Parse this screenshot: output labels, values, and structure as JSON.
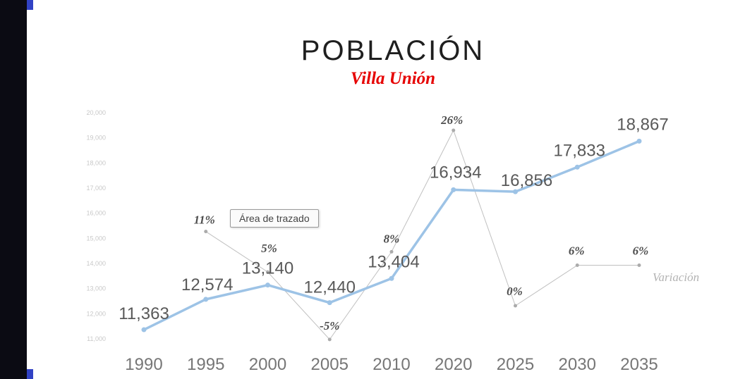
{
  "title": "POBLACIÓN",
  "subtitle": "Villa Unión",
  "tooltip": {
    "text": "Área de trazado"
  },
  "legend": {
    "variation_label": "Variación"
  },
  "colors": {
    "population_line": "#9dc3e6",
    "variation_line": "#c0c0c0",
    "variation_marker": "#ababab",
    "subtitle_red": "#e60000",
    "accent_blue": "#3142c4",
    "panel_black": "#0b0b13"
  },
  "chart_data": {
    "type": "line",
    "title": "POBLACIÓN",
    "subtitle": "Villa Unión",
    "categories": [
      "1990",
      "1995",
      "2000",
      "2005",
      "2010",
      "2020",
      "2025",
      "2030",
      "2035"
    ],
    "series": [
      {
        "name": "Población",
        "values": [
          11363,
          12574,
          13140,
          12440,
          13404,
          16934,
          16856,
          17833,
          18867
        ],
        "labels": [
          "11,363",
          "12,574",
          "13,140",
          "12,440",
          "13,404",
          "16,934",
          "16,856",
          "17,833",
          "18,867"
        ]
      },
      {
        "name": "Variación",
        "values": [
          null,
          11,
          5,
          -5,
          8,
          26,
          0,
          6,
          6
        ],
        "labels": [
          null,
          "11%",
          "5%",
          "-5%",
          "8%",
          "26%",
          "0%",
          "6%",
          "6%"
        ]
      }
    ],
    "y_axis": {
      "tick_values": [
        11000,
        12000,
        13000,
        14000,
        15000,
        16000,
        17000,
        18000,
        19000,
        20000
      ],
      "tick_labels": [
        "11,000",
        "12,000",
        "13,000",
        "14,000",
        "15,000",
        "16,000",
        "17,000",
        "18,000",
        "19,000",
        "20,000"
      ],
      "range": [
        11000,
        20000
      ]
    },
    "grid": "off",
    "legend_position": "right-inline"
  }
}
